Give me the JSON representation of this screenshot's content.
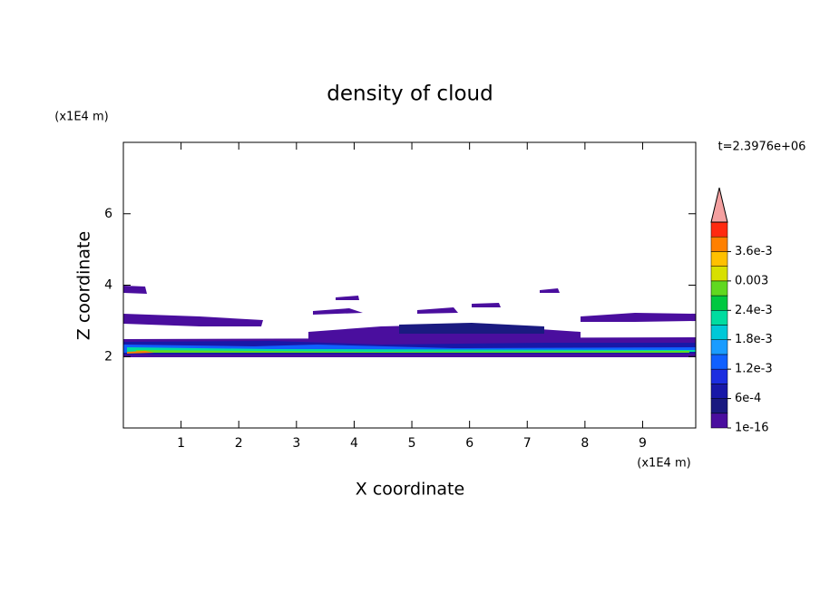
{
  "chart_data": {
    "type": "contour",
    "title": "density of cloud",
    "x_label": "X coordinate",
    "y_label": "Z coordinate",
    "x_unit": "(x1E4 m)",
    "y_unit": "(x1E4 m)",
    "time_label": "t=2.3976e+06",
    "xlim": [
      0,
      9.92
    ],
    "ylim": [
      0,
      8
    ],
    "xticks": [
      1,
      2,
      3,
      4,
      5,
      6,
      7,
      8,
      9
    ],
    "yticks": [
      2,
      4,
      6
    ],
    "colorbar": {
      "colors": [
        "#4a0e9e",
        "#1a1a80",
        "#1818a8",
        "#1c2ee0",
        "#1060ff",
        "#1a9cff",
        "#00c8d8",
        "#00dca0",
        "#00c840",
        "#60d820",
        "#d8e000",
        "#ffc000",
        "#ff8000",
        "#ff2a10"
      ],
      "extend_color": "#f4a0a0",
      "lim": [
        1e-16,
        0.0042
      ],
      "ticks": [
        {
          "value": 1e-16,
          "label": "1e-16"
        },
        {
          "value": 0.0006,
          "label": "6e-4"
        },
        {
          "value": 0.0012,
          "label": "1.2e-3"
        },
        {
          "value": 0.0018,
          "label": "1.8e-3"
        },
        {
          "value": 0.0024,
          "label": "2.4e-3"
        },
        0.003,
        {
          "value": 0.0036,
          "label": "3.6e-3"
        }
      ]
    }
  }
}
